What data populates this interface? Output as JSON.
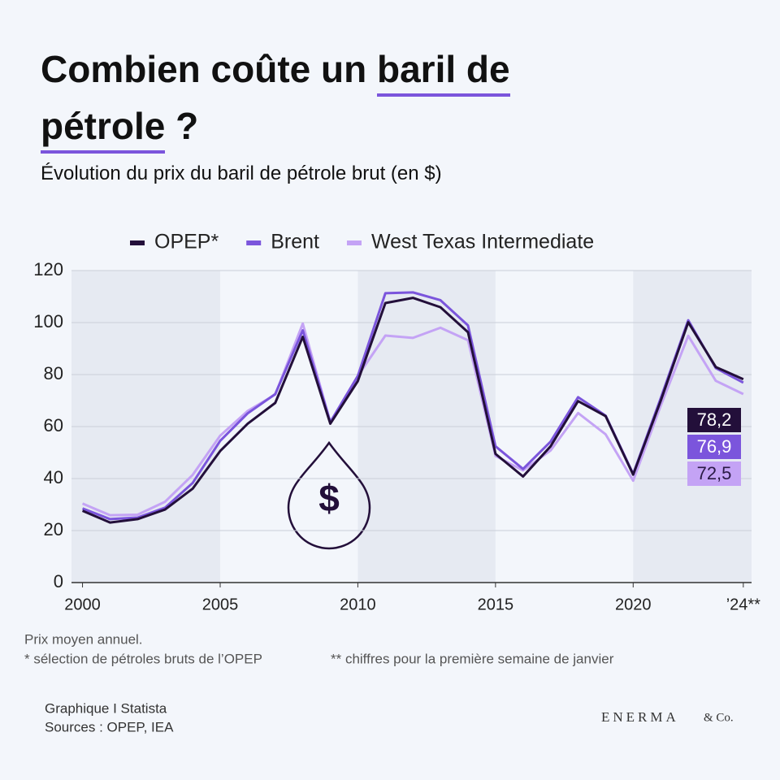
{
  "chart_data": {
    "type": "line",
    "title_lines": [
      [
        "Combien coûte un ",
        "baril de"
      ],
      [
        "pétrole",
        " ?"
      ]
    ],
    "subtitle": "Évolution du prix du baril de pétrole brut (en $)",
    "icon": "$",
    "x": [
      2000,
      2001,
      2002,
      2003,
      2004,
      2005,
      2006,
      2007,
      2008,
      2009,
      2010,
      2011,
      2012,
      2013,
      2014,
      2015,
      2016,
      2017,
      2018,
      2019,
      2020,
      2021,
      2022,
      2023,
      2024
    ],
    "series": [
      {
        "name": "OPEP*",
        "color": "#230f3a",
        "values": [
          27.6,
          23.1,
          24.4,
          28.1,
          36.1,
          50.6,
          61.1,
          69.1,
          94.5,
          61.1,
          77.5,
          107.5,
          109.5,
          105.9,
          96.3,
          49.5,
          40.8,
          52.4,
          69.8,
          64.0,
          41.5,
          69.9,
          100.1,
          82.9,
          78.2
        ],
        "value_labels": [
          null,
          null,
          null,
          null,
          null,
          null,
          null,
          null,
          null,
          null,
          null,
          null,
          null,
          null,
          null,
          null,
          null,
          null,
          null,
          null,
          null,
          null,
          null,
          null,
          "78,2"
        ]
      },
      {
        "name": "Brent",
        "color": "#7b55dc",
        "values": [
          28.5,
          24.4,
          25.0,
          28.8,
          38.3,
          54.5,
          65.1,
          72.5,
          97.0,
          61.7,
          79.5,
          111.3,
          111.6,
          108.6,
          98.9,
          52.4,
          43.7,
          54.2,
          71.3,
          64.2,
          41.8,
          70.9,
          100.9,
          82.5,
          76.9
        ],
        "value_labels": [
          null,
          null,
          null,
          null,
          null,
          null,
          null,
          null,
          null,
          null,
          null,
          null,
          null,
          null,
          null,
          null,
          null,
          null,
          null,
          null,
          null,
          null,
          null,
          null,
          "76,9"
        ]
      },
      {
        "name": "West Texas Intermediate",
        "color": "#c4a3f5",
        "values": [
          30.4,
          25.9,
          26.1,
          31.1,
          41.4,
          56.5,
          66.0,
          72.3,
          99.6,
          61.7,
          79.5,
          95.0,
          94.1,
          98.0,
          93.2,
          48.7,
          43.1,
          50.8,
          65.2,
          57.0,
          39.2,
          68.0,
          94.9,
          77.6,
          72.5
        ],
        "value_labels": [
          null,
          null,
          null,
          null,
          null,
          null,
          null,
          null,
          null,
          null,
          null,
          null,
          null,
          null,
          null,
          null,
          null,
          null,
          null,
          null,
          null,
          null,
          null,
          null,
          "72,5"
        ]
      }
    ],
    "xlim": [
      1999.6,
      2024.3
    ],
    "xticks": [
      2000,
      2005,
      2010,
      2015,
      2020,
      {
        "value": 2024,
        "label": "’24**"
      }
    ],
    "ylim": [
      0,
      120
    ],
    "yticks": [
      0,
      20,
      40,
      60,
      80,
      100,
      120
    ],
    "grid": true,
    "legend": "top",
    "notes": [
      "Prix moyen annuel.",
      "* sélection de pétroles bruts de l’OPEP",
      "** chiffres pour la première semaine de janvier"
    ],
    "source": [
      "Graphique I Statista",
      "Sources : OPEP, IEA"
    ],
    "brand": [
      "ENERMA",
      "& Co."
    ]
  }
}
